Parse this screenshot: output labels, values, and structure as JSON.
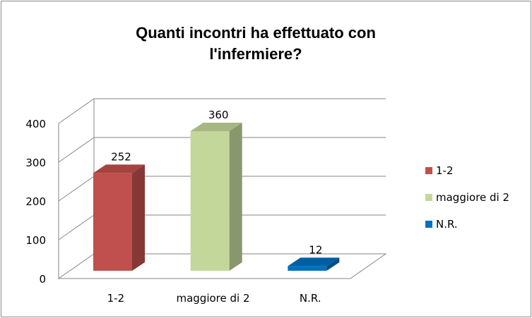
{
  "chart_data": {
    "type": "bar",
    "title_line1": "Quanti incontri ha effettuato con",
    "title_line2": "l'infermiere?",
    "categories": [
      "1-2",
      "maggiore di 2",
      "N.R."
    ],
    "values": [
      252,
      360,
      12
    ],
    "colors": [
      "#c0504d",
      "#c4d79b",
      "#0070c0"
    ],
    "y_ticks": [
      "0",
      "100",
      "200",
      "300",
      "400"
    ],
    "ylim": [
      0,
      400
    ],
    "grid": true,
    "three_d": true,
    "legend_placement": "right",
    "legend": [
      {
        "label": "1-2",
        "color": "#c0504d"
      },
      {
        "label": "maggiore di 2",
        "color": "#c4d79b"
      },
      {
        "label": "N.R.",
        "color": "#0070c0"
      }
    ]
  }
}
